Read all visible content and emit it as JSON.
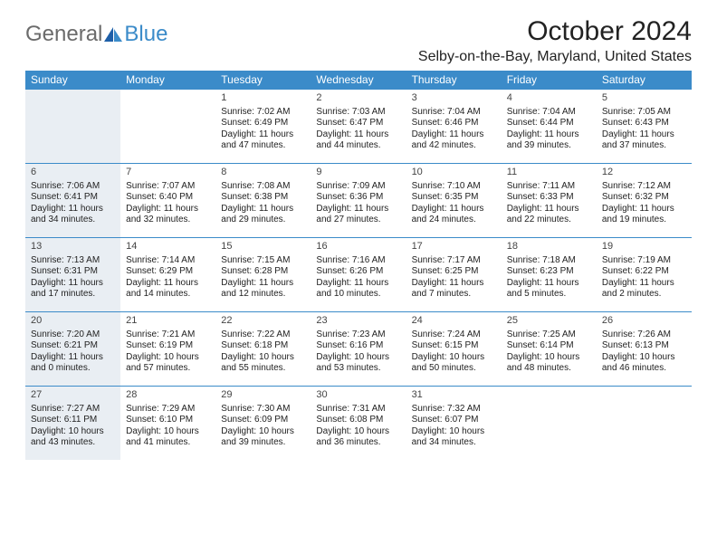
{
  "logo": {
    "text1": "General",
    "text2": "Blue"
  },
  "title": "October 2024",
  "location": "Selby-on-the-Bay, Maryland, United States",
  "colors": {
    "header_bg": "#3b8bc9",
    "sunday_bg": "#e9eef3",
    "border": "#3b8bc9"
  },
  "weekdays": [
    "Sunday",
    "Monday",
    "Tuesday",
    "Wednesday",
    "Thursday",
    "Friday",
    "Saturday"
  ],
  "weeks": [
    [
      {
        "n": "",
        "sr": "",
        "ss": "",
        "dl": ""
      },
      {
        "n": "",
        "sr": "",
        "ss": "",
        "dl": ""
      },
      {
        "n": "1",
        "sr": "Sunrise: 7:02 AM",
        "ss": "Sunset: 6:49 PM",
        "dl": "Daylight: 11 hours and 47 minutes."
      },
      {
        "n": "2",
        "sr": "Sunrise: 7:03 AM",
        "ss": "Sunset: 6:47 PM",
        "dl": "Daylight: 11 hours and 44 minutes."
      },
      {
        "n": "3",
        "sr": "Sunrise: 7:04 AM",
        "ss": "Sunset: 6:46 PM",
        "dl": "Daylight: 11 hours and 42 minutes."
      },
      {
        "n": "4",
        "sr": "Sunrise: 7:04 AM",
        "ss": "Sunset: 6:44 PM",
        "dl": "Daylight: 11 hours and 39 minutes."
      },
      {
        "n": "5",
        "sr": "Sunrise: 7:05 AM",
        "ss": "Sunset: 6:43 PM",
        "dl": "Daylight: 11 hours and 37 minutes."
      }
    ],
    [
      {
        "n": "6",
        "sr": "Sunrise: 7:06 AM",
        "ss": "Sunset: 6:41 PM",
        "dl": "Daylight: 11 hours and 34 minutes."
      },
      {
        "n": "7",
        "sr": "Sunrise: 7:07 AM",
        "ss": "Sunset: 6:40 PM",
        "dl": "Daylight: 11 hours and 32 minutes."
      },
      {
        "n": "8",
        "sr": "Sunrise: 7:08 AM",
        "ss": "Sunset: 6:38 PM",
        "dl": "Daylight: 11 hours and 29 minutes."
      },
      {
        "n": "9",
        "sr": "Sunrise: 7:09 AM",
        "ss": "Sunset: 6:36 PM",
        "dl": "Daylight: 11 hours and 27 minutes."
      },
      {
        "n": "10",
        "sr": "Sunrise: 7:10 AM",
        "ss": "Sunset: 6:35 PM",
        "dl": "Daylight: 11 hours and 24 minutes."
      },
      {
        "n": "11",
        "sr": "Sunrise: 7:11 AM",
        "ss": "Sunset: 6:33 PM",
        "dl": "Daylight: 11 hours and 22 minutes."
      },
      {
        "n": "12",
        "sr": "Sunrise: 7:12 AM",
        "ss": "Sunset: 6:32 PM",
        "dl": "Daylight: 11 hours and 19 minutes."
      }
    ],
    [
      {
        "n": "13",
        "sr": "Sunrise: 7:13 AM",
        "ss": "Sunset: 6:31 PM",
        "dl": "Daylight: 11 hours and 17 minutes."
      },
      {
        "n": "14",
        "sr": "Sunrise: 7:14 AM",
        "ss": "Sunset: 6:29 PM",
        "dl": "Daylight: 11 hours and 14 minutes."
      },
      {
        "n": "15",
        "sr": "Sunrise: 7:15 AM",
        "ss": "Sunset: 6:28 PM",
        "dl": "Daylight: 11 hours and 12 minutes."
      },
      {
        "n": "16",
        "sr": "Sunrise: 7:16 AM",
        "ss": "Sunset: 6:26 PM",
        "dl": "Daylight: 11 hours and 10 minutes."
      },
      {
        "n": "17",
        "sr": "Sunrise: 7:17 AM",
        "ss": "Sunset: 6:25 PM",
        "dl": "Daylight: 11 hours and 7 minutes."
      },
      {
        "n": "18",
        "sr": "Sunrise: 7:18 AM",
        "ss": "Sunset: 6:23 PM",
        "dl": "Daylight: 11 hours and 5 minutes."
      },
      {
        "n": "19",
        "sr": "Sunrise: 7:19 AM",
        "ss": "Sunset: 6:22 PM",
        "dl": "Daylight: 11 hours and 2 minutes."
      }
    ],
    [
      {
        "n": "20",
        "sr": "Sunrise: 7:20 AM",
        "ss": "Sunset: 6:21 PM",
        "dl": "Daylight: 11 hours and 0 minutes."
      },
      {
        "n": "21",
        "sr": "Sunrise: 7:21 AM",
        "ss": "Sunset: 6:19 PM",
        "dl": "Daylight: 10 hours and 57 minutes."
      },
      {
        "n": "22",
        "sr": "Sunrise: 7:22 AM",
        "ss": "Sunset: 6:18 PM",
        "dl": "Daylight: 10 hours and 55 minutes."
      },
      {
        "n": "23",
        "sr": "Sunrise: 7:23 AM",
        "ss": "Sunset: 6:16 PM",
        "dl": "Daylight: 10 hours and 53 minutes."
      },
      {
        "n": "24",
        "sr": "Sunrise: 7:24 AM",
        "ss": "Sunset: 6:15 PM",
        "dl": "Daylight: 10 hours and 50 minutes."
      },
      {
        "n": "25",
        "sr": "Sunrise: 7:25 AM",
        "ss": "Sunset: 6:14 PM",
        "dl": "Daylight: 10 hours and 48 minutes."
      },
      {
        "n": "26",
        "sr": "Sunrise: 7:26 AM",
        "ss": "Sunset: 6:13 PM",
        "dl": "Daylight: 10 hours and 46 minutes."
      }
    ],
    [
      {
        "n": "27",
        "sr": "Sunrise: 7:27 AM",
        "ss": "Sunset: 6:11 PM",
        "dl": "Daylight: 10 hours and 43 minutes."
      },
      {
        "n": "28",
        "sr": "Sunrise: 7:29 AM",
        "ss": "Sunset: 6:10 PM",
        "dl": "Daylight: 10 hours and 41 minutes."
      },
      {
        "n": "29",
        "sr": "Sunrise: 7:30 AM",
        "ss": "Sunset: 6:09 PM",
        "dl": "Daylight: 10 hours and 39 minutes."
      },
      {
        "n": "30",
        "sr": "Sunrise: 7:31 AM",
        "ss": "Sunset: 6:08 PM",
        "dl": "Daylight: 10 hours and 36 minutes."
      },
      {
        "n": "31",
        "sr": "Sunrise: 7:32 AM",
        "ss": "Sunset: 6:07 PM",
        "dl": "Daylight: 10 hours and 34 minutes."
      },
      {
        "n": "",
        "sr": "",
        "ss": "",
        "dl": ""
      },
      {
        "n": "",
        "sr": "",
        "ss": "",
        "dl": ""
      }
    ]
  ]
}
